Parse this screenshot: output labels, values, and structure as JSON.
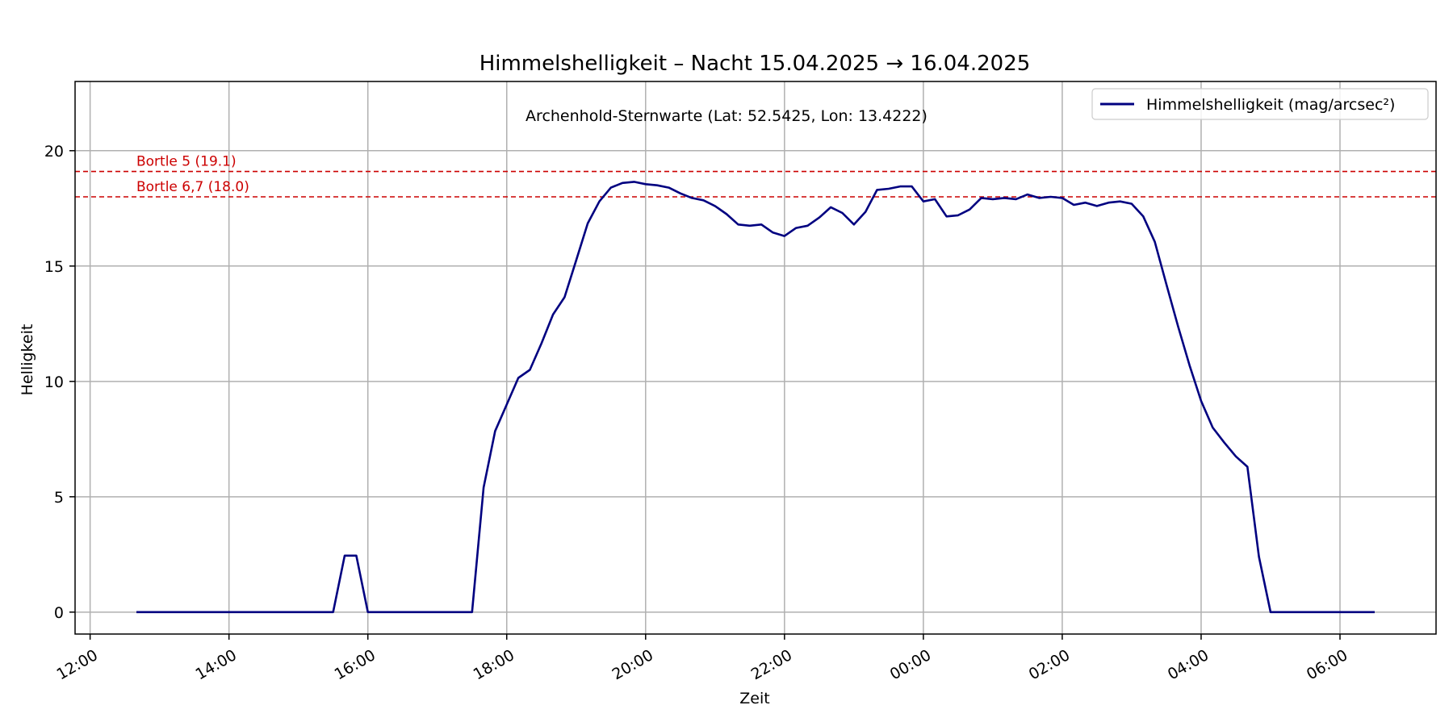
{
  "chart_data": {
    "type": "line",
    "title": "Himmelshelligkeit – Nacht 15.04.2025 → 16.04.2025",
    "subtitle": "Archenhold-Sternwarte (Lat: 52.5425, Lon: 13.4222)",
    "xlabel": "Zeit",
    "ylabel": "Helligkeit",
    "xlim": [
      "2025-04-15 11:47",
      "2025-04-16 07:23"
    ],
    "ylim": [
      -0.95,
      23
    ],
    "x_ticks": [
      "12:00",
      "14:00",
      "16:00",
      "18:00",
      "20:00",
      "22:00",
      "00:00",
      "02:00",
      "04:00",
      "06:00"
    ],
    "y_ticks": [
      0,
      5,
      10,
      15,
      20
    ],
    "grid": true,
    "legend_position": "top-right",
    "series": [
      {
        "name": "Himmelshelligkeit (mag/arcsec²)",
        "color": "#000080",
        "x": [
          "2025-04-15 12:40",
          "2025-04-15 15:30",
          "2025-04-15 15:40",
          "2025-04-15 15:50",
          "2025-04-15 16:00",
          "2025-04-15 17:30",
          "2025-04-15 17:40",
          "2025-04-15 17:50",
          "2025-04-15 18:00",
          "2025-04-15 18:10",
          "2025-04-15 18:20",
          "2025-04-15 18:30",
          "2025-04-15 18:40",
          "2025-04-15 18:50",
          "2025-04-15 19:00",
          "2025-04-15 19:10",
          "2025-04-15 19:20",
          "2025-04-15 19:30",
          "2025-04-15 19:40",
          "2025-04-15 19:50",
          "2025-04-15 20:00",
          "2025-04-15 20:10",
          "2025-04-15 20:20",
          "2025-04-15 20:30",
          "2025-04-15 20:40",
          "2025-04-15 20:50",
          "2025-04-15 21:00",
          "2025-04-15 21:10",
          "2025-04-15 21:20",
          "2025-04-15 21:30",
          "2025-04-15 21:40",
          "2025-04-15 21:50",
          "2025-04-15 22:00",
          "2025-04-15 22:10",
          "2025-04-15 22:20",
          "2025-04-15 22:30",
          "2025-04-15 22:40",
          "2025-04-15 22:50",
          "2025-04-15 23:00",
          "2025-04-15 23:10",
          "2025-04-15 23:20",
          "2025-04-15 23:30",
          "2025-04-15 23:40",
          "2025-04-15 23:50",
          "2025-04-16 00:00",
          "2025-04-16 00:10",
          "2025-04-16 00:20",
          "2025-04-16 00:30",
          "2025-04-16 00:40",
          "2025-04-16 00:50",
          "2025-04-16 01:00",
          "2025-04-16 01:10",
          "2025-04-16 01:20",
          "2025-04-16 01:30",
          "2025-04-16 01:40",
          "2025-04-16 01:50",
          "2025-04-16 02:00",
          "2025-04-16 02:10",
          "2025-04-16 02:20",
          "2025-04-16 02:30",
          "2025-04-16 02:40",
          "2025-04-16 02:50",
          "2025-04-16 03:00",
          "2025-04-16 03:10",
          "2025-04-16 03:20",
          "2025-04-16 03:30",
          "2025-04-16 03:40",
          "2025-04-16 03:50",
          "2025-04-16 04:00",
          "2025-04-16 04:10",
          "2025-04-16 04:20",
          "2025-04-16 04:30",
          "2025-04-16 04:40",
          "2025-04-16 04:50",
          "2025-04-16 05:00",
          "2025-04-16 06:30"
        ],
        "y": [
          0,
          0,
          2.45,
          2.45,
          0,
          0,
          5.4,
          7.85,
          9.0,
          10.15,
          10.5,
          11.65,
          12.9,
          13.65,
          15.25,
          16.85,
          17.8,
          18.4,
          18.6,
          18.65,
          18.55,
          18.5,
          18.4,
          18.15,
          17.95,
          17.85,
          17.6,
          17.25,
          16.8,
          16.75,
          16.8,
          16.45,
          16.3,
          16.65,
          16.75,
          17.1,
          17.55,
          17.3,
          16.8,
          17.35,
          18.3,
          18.35,
          18.45,
          18.45,
          17.8,
          17.9,
          17.15,
          17.2,
          17.45,
          17.95,
          17.9,
          17.95,
          17.9,
          18.1,
          17.95,
          18.0,
          17.95,
          17.65,
          17.75,
          17.6,
          17.75,
          17.8,
          17.7,
          17.15,
          16.05,
          14.2,
          12.4,
          10.7,
          9.15,
          8.0,
          7.35,
          6.75,
          6.3,
          2.4,
          0,
          0
        ]
      }
    ],
    "reference_lines": [
      {
        "label": "Bortle 5 (19.1)",
        "value": 19.1,
        "color": "#cc0000"
      },
      {
        "label": "Bortle 6,7 (18.0)",
        "value": 18.0,
        "color": "#cc0000"
      }
    ]
  }
}
